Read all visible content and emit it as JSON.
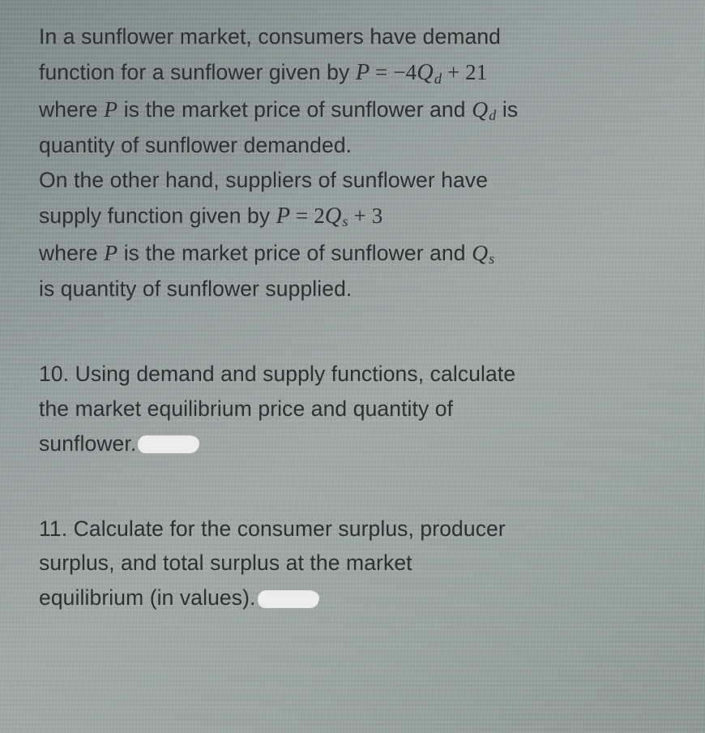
{
  "intro": {
    "l1_a": "In a sunflower market, consumers have demand",
    "l2_a": "function for a sunflower given by ",
    "l2_eq_P": "P",
    "l2_eq_mid": " = −4",
    "l2_eq_Q": "Q",
    "l2_eq_sub_d": "d",
    "l2_eq_tail": " + 21",
    "l3_a": "where ",
    "l3_P": "P",
    "l3_b": " is the market price of sunflower and ",
    "l3_Q": "Q",
    "l3_sub_d": "d",
    "l3_c": " is",
    "l4": "quantity of sunflower demanded.",
    "l5": "On the other hand, suppliers of sunflower have",
    "l6_a": "supply function given by ",
    "l6_eq_P": "P",
    "l6_eq_mid": " = 2",
    "l6_eq_Q": "Q",
    "l6_eq_sub_s": "s",
    "l6_eq_tail": " + 3",
    "l7_a": "where ",
    "l7_P": "P",
    "l7_b": " is the market price of sunflower and ",
    "l7_Q": "Q",
    "l7_sub_s": "s",
    "l8": "is quantity of sunflower supplied."
  },
  "q10": {
    "l1": "10. Using demand and supply functions, calculate",
    "l2": "the market equilibrium price and quantity of",
    "l3": "sunflower."
  },
  "q11": {
    "l1": "11. Calculate for the consumer surplus, producer",
    "l2": "surplus, and total surplus at the market",
    "l3": "equilibrium (in values)."
  }
}
